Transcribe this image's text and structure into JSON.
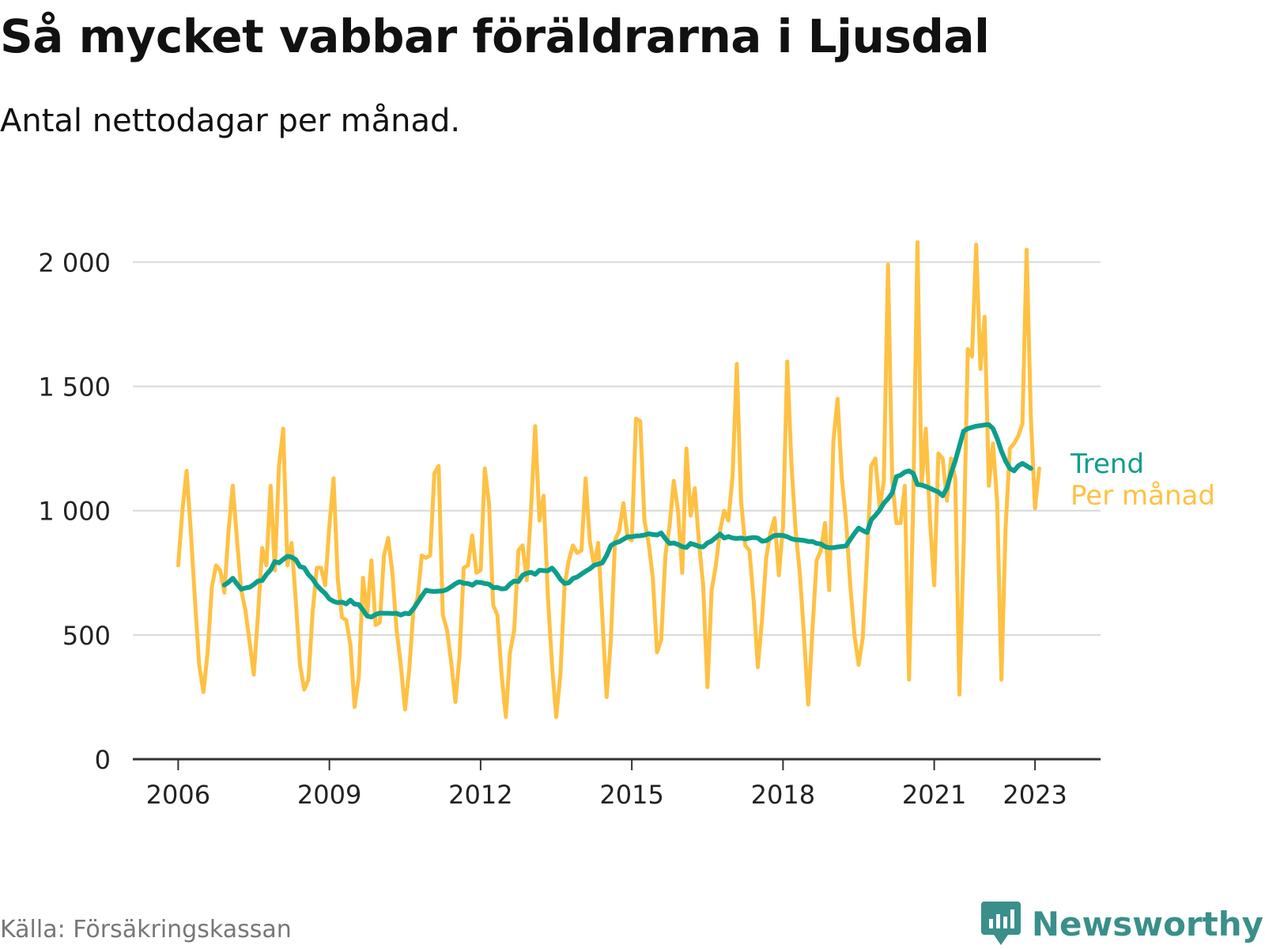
{
  "title": "Så mycket vabbar föräldrarna i Ljusdal",
  "subtitle": "Antal nettodagar per månad.",
  "source": "Källa: Försäkringskassan",
  "brand": "Newsworthy",
  "colors": {
    "trend": "#0d9e8c",
    "monthly": "#ffc144",
    "grid": "#d9d9d9",
    "axis": "#333333",
    "brand": "#3a8f8a"
  },
  "chart_data": {
    "type": "line",
    "x_ticks": [
      2006,
      2009,
      2012,
      2015,
      2018,
      2021,
      2023
    ],
    "y_ticks": [
      {
        "value": 0,
        "label": "0"
      },
      {
        "value": 500,
        "label": "500"
      },
      {
        "value": 1000,
        "label": "1 000"
      },
      {
        "value": 1500,
        "label": "1 500"
      },
      {
        "value": 2000,
        "label": "2 000"
      }
    ],
    "ylim": [
      0,
      2100
    ],
    "xlim": [
      2005.1,
      2024.3
    ],
    "grid": true,
    "series": [
      {
        "name": "Per månad",
        "start": "2006-01",
        "values": [
          780,
          1000,
          1160,
          920,
          640,
          380,
          270,
          430,
          690,
          780,
          760,
          670,
          920,
          1100,
          880,
          680,
          600,
          470,
          340,
          580,
          850,
          780,
          1100,
          760,
          1180,
          1330,
          780,
          870,
          640,
          380,
          280,
          320,
          590,
          770,
          770,
          700,
          940,
          1130,
          720,
          570,
          560,
          460,
          210,
          330,
          730,
          580,
          800,
          540,
          550,
          820,
          890,
          750,
          520,
          380,
          200,
          360,
          600,
          650,
          820,
          810,
          820,
          1150,
          1180,
          580,
          520,
          390,
          230,
          420,
          770,
          780,
          900,
          750,
          760,
          1170,
          1030,
          620,
          580,
          340,
          170,
          430,
          520,
          840,
          860,
          720,
          1000,
          1340,
          960,
          1060,
          660,
          380,
          170,
          340,
          700,
          800,
          860,
          830,
          840,
          1130,
          880,
          780,
          870,
          570,
          250,
          480,
          880,
          920,
          1030,
          890,
          880,
          1370,
          1360,
          960,
          870,
          730,
          430,
          480,
          820,
          940,
          1120,
          1000,
          750,
          1250,
          980,
          1090,
          870,
          700,
          290,
          680,
          780,
          920,
          1000,
          960,
          1140,
          1590,
          1040,
          860,
          840,
          640,
          370,
          560,
          810,
          910,
          970,
          740,
          940,
          1600,
          1190,
          920,
          750,
          500,
          220,
          520,
          800,
          840,
          950,
          680,
          1280,
          1450,
          1130,
          960,
          700,
          500,
          380,
          490,
          810,
          1180,
          1210,
          1010,
          1120,
          1990,
          1120,
          950,
          950,
          1100,
          320,
          1040,
          2080,
          1100,
          1330,
          960,
          700,
          1230,
          1210,
          1040,
          1210,
          1130,
          260,
          850,
          1650,
          1620,
          2070,
          1570,
          1780,
          1100,
          1270,
          1030,
          320,
          930,
          1250,
          1270,
          1300,
          1350,
          2050,
          1380,
          1010,
          1170
        ]
      },
      {
        "name": "Trend",
        "start": "2006-12",
        "values": [
          701,
          712,
          728,
          705,
          684,
          689,
          692,
          703,
          717,
          719,
          743,
          762,
          795,
          790,
          804,
          816,
          813,
          803,
          775,
          770,
          743,
          725,
          700,
          682,
          667,
          645,
          635,
          630,
          632,
          625,
          640,
          624,
          622,
          600,
          576,
          572,
          582,
          588,
          587,
          587,
          586,
          587,
          580,
          587,
          585,
          605,
          630,
          656,
          680,
          676,
          675,
          676,
          677,
          683,
          694,
          706,
          714,
          708,
          707,
          700,
          712,
          711,
          707,
          704,
          690,
          691,
          685,
          687,
          705,
          717,
          715,
          740,
          748,
          752,
          744,
          760,
          759,
          758,
          769,
          749,
          724,
          707,
          710,
          727,
          733,
          745,
          756,
          766,
          780,
          785,
          790,
          820,
          859,
          870,
          875,
          885,
          895,
          895,
          898,
          899,
          902,
          907,
          904,
          902,
          910,
          887,
          868,
          870,
          864,
          855,
          852,
          868,
          863,
          856,
          854,
          870,
          878,
          892,
          906,
          890,
          896,
          890,
          888,
          890,
          886,
          890,
          892,
          890,
          877,
          879,
          890,
          900,
          901,
          900,
          895,
          887,
          883,
          882,
          880,
          876,
          876,
          868,
          866,
          855,
          851,
          851,
          854,
          856,
          858,
          884,
          908,
          930,
          920,
          912,
          963,
          981,
          1002,
          1030,
          1048,
          1071,
          1137,
          1143,
          1155,
          1160,
          1150,
          1105,
          1103,
          1097,
          1090,
          1082,
          1075,
          1060,
          1090,
          1150,
          1200,
          1260,
          1320,
          1330,
          1335,
          1340,
          1342,
          1345,
          1346,
          1330,
          1290,
          1240,
          1200,
          1170,
          1160,
          1180,
          1190,
          1180,
          1170
        ]
      }
    ],
    "labels": {
      "trend": "Trend",
      "monthly": "Per månad"
    }
  }
}
